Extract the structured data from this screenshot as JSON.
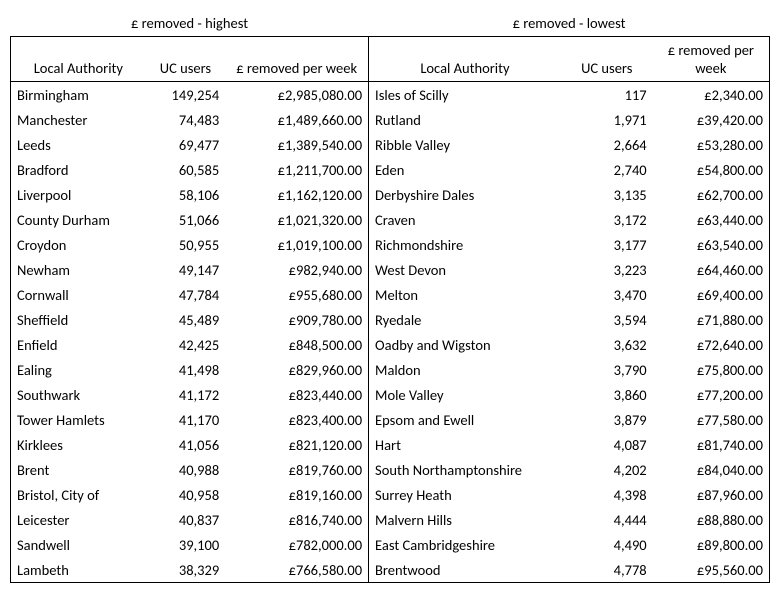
{
  "font": {
    "family": "Calibri, Arial, sans-serif",
    "size_pt": 11
  },
  "colors": {
    "text": "#000000",
    "background": "#ffffff",
    "border": "#000000"
  },
  "currency_symbol": "£",
  "sections": {
    "highest": {
      "title": "£ removed - highest",
      "columns": [
        "Local Authority",
        "UC users",
        "£ removed per week"
      ]
    },
    "lowest": {
      "title": "£ removed - lowest",
      "columns": [
        "Local Authority",
        "UC users",
        "£ removed per week"
      ]
    }
  },
  "highest": [
    {
      "la": "Birmingham",
      "uc": "149,254",
      "amt": "£2,985,080.00"
    },
    {
      "la": "Manchester",
      "uc": "74,483",
      "amt": "£1,489,660.00"
    },
    {
      "la": "Leeds",
      "uc": "69,477",
      "amt": "£1,389,540.00"
    },
    {
      "la": "Bradford",
      "uc": "60,585",
      "amt": "£1,211,700.00"
    },
    {
      "la": "Liverpool",
      "uc": "58,106",
      "amt": "£1,162,120.00"
    },
    {
      "la": "County Durham",
      "uc": "51,066",
      "amt": "£1,021,320.00"
    },
    {
      "la": "Croydon",
      "uc": "50,955",
      "amt": "£1,019,100.00"
    },
    {
      "la": "Newham",
      "uc": "49,147",
      "amt": "£982,940.00"
    },
    {
      "la": "Cornwall",
      "uc": "47,784",
      "amt": "£955,680.00"
    },
    {
      "la": "Sheffield",
      "uc": "45,489",
      "amt": "£909,780.00"
    },
    {
      "la": "Enfield",
      "uc": "42,425",
      "amt": "£848,500.00"
    },
    {
      "la": "Ealing",
      "uc": "41,498",
      "amt": "£829,960.00"
    },
    {
      "la": "Southwark",
      "uc": "41,172",
      "amt": "£823,440.00"
    },
    {
      "la": "Tower Hamlets",
      "uc": "41,170",
      "amt": "£823,400.00"
    },
    {
      "la": "Kirklees",
      "uc": "41,056",
      "amt": "£821,120.00"
    },
    {
      "la": "Brent",
      "uc": "40,988",
      "amt": "£819,760.00"
    },
    {
      "la": "Bristol, City of",
      "uc": "40,958",
      "amt": "£819,160.00"
    },
    {
      "la": "Leicester",
      "uc": "40,837",
      "amt": "£816,740.00"
    },
    {
      "la": "Sandwell",
      "uc": "39,100",
      "amt": "£782,000.00"
    },
    {
      "la": "Lambeth",
      "uc": "38,329",
      "amt": "£766,580.00"
    }
  ],
  "lowest": [
    {
      "la": "Isles of Scilly",
      "uc": "117",
      "amt": "£2,340.00"
    },
    {
      "la": "Rutland",
      "uc": "1,971",
      "amt": "£39,420.00"
    },
    {
      "la": "Ribble Valley",
      "uc": "2,664",
      "amt": "£53,280.00"
    },
    {
      "la": "Eden",
      "uc": "2,740",
      "amt": "£54,800.00"
    },
    {
      "la": "Derbyshire Dales",
      "uc": "3,135",
      "amt": "£62,700.00"
    },
    {
      "la": "Craven",
      "uc": "3,172",
      "amt": "£63,440.00"
    },
    {
      "la": "Richmondshire",
      "uc": "3,177",
      "amt": "£63,540.00"
    },
    {
      "la": "West Devon",
      "uc": "3,223",
      "amt": "£64,460.00"
    },
    {
      "la": "Melton",
      "uc": "3,470",
      "amt": "£69,400.00"
    },
    {
      "la": "Ryedale",
      "uc": "3,594",
      "amt": "£71,880.00"
    },
    {
      "la": "Oadby and Wigston",
      "uc": "3,632",
      "amt": "£72,640.00"
    },
    {
      "la": "Maldon",
      "uc": "3,790",
      "amt": "£75,800.00"
    },
    {
      "la": "Mole Valley",
      "uc": "3,860",
      "amt": "£77,200.00"
    },
    {
      "la": "Epsom and Ewell",
      "uc": "3,879",
      "amt": "£77,580.00"
    },
    {
      "la": "Hart",
      "uc": "4,087",
      "amt": "£81,740.00"
    },
    {
      "la": "South Northamptonshire",
      "uc": "4,202",
      "amt": "£84,040.00"
    },
    {
      "la": "Surrey Heath",
      "uc": "4,398",
      "amt": "£87,960.00"
    },
    {
      "la": "Malvern Hills",
      "uc": "4,444",
      "amt": "£88,880.00"
    },
    {
      "la": "East Cambridgeshire",
      "uc": "4,490",
      "amt": "£89,800.00"
    },
    {
      "la": "Brentwood",
      "uc": "4,778",
      "amt": "£95,560.00"
    }
  ]
}
